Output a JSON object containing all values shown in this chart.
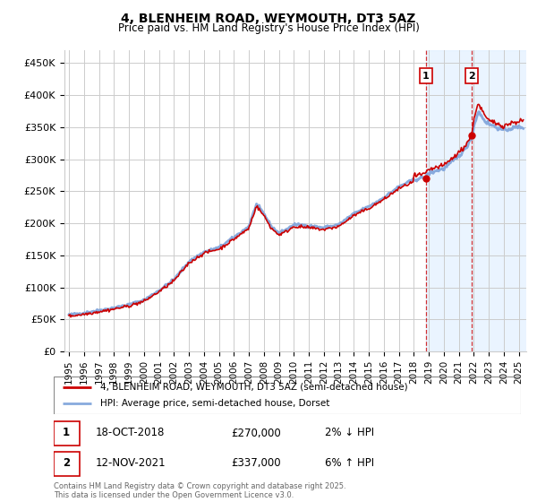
{
  "title": "4, BLENHEIM ROAD, WEYMOUTH, DT3 5AZ",
  "subtitle": "Price paid vs. HM Land Registry's House Price Index (HPI)",
  "ylabel_ticks": [
    "£0",
    "£50K",
    "£100K",
    "£150K",
    "£200K",
    "£250K",
    "£300K",
    "£350K",
    "£400K",
    "£450K"
  ],
  "ytick_values": [
    0,
    50000,
    100000,
    150000,
    200000,
    250000,
    300000,
    350000,
    400000,
    450000
  ],
  "ylim": [
    0,
    470000
  ],
  "xlim_start": 1994.7,
  "xlim_end": 2025.5,
  "xticks": [
    1995,
    1996,
    1997,
    1998,
    1999,
    2000,
    2001,
    2002,
    2003,
    2004,
    2005,
    2006,
    2007,
    2008,
    2009,
    2010,
    2011,
    2012,
    2013,
    2014,
    2015,
    2016,
    2017,
    2018,
    2019,
    2020,
    2021,
    2022,
    2023,
    2024,
    2025
  ],
  "sale1_date_x": 2018.8,
  "sale1_y": 270000,
  "sale1_label": "1",
  "sale2_date_x": 2021.87,
  "sale2_y": 337000,
  "sale2_label": "2",
  "shade_start": 2018.8,
  "shade_end": 2025.5,
  "line_color_red": "#cc0000",
  "line_color_blue": "#88aadd",
  "shade_color": "#ddeeff",
  "grid_color": "#cccccc",
  "legend_label_red": "4, BLENHEIM ROAD, WEYMOUTH, DT3 5AZ (semi-detached house)",
  "legend_label_blue": "HPI: Average price, semi-detached house, Dorset",
  "table_row1": [
    "1",
    "18-OCT-2018",
    "£270,000",
    "2% ↓ HPI"
  ],
  "table_row2": [
    "2",
    "12-NOV-2021",
    "£337,000",
    "6% ↑ HPI"
  ],
  "footnote": "Contains HM Land Registry data © Crown copyright and database right 2025.\nThis data is licensed under the Open Government Licence v3.0.",
  "background_color": "#ffffff",
  "hpi_base_points": [
    [
      1995,
      57000
    ],
    [
      1996,
      60000
    ],
    [
      1997,
      64000
    ],
    [
      1998,
      68000
    ],
    [
      1999,
      73000
    ],
    [
      2000,
      80000
    ],
    [
      2001,
      95000
    ],
    [
      2002,
      112000
    ],
    [
      2003,
      140000
    ],
    [
      2004,
      155000
    ],
    [
      2005,
      162000
    ],
    [
      2006,
      178000
    ],
    [
      2007,
      195000
    ],
    [
      2007.5,
      230000
    ],
    [
      2008,
      215000
    ],
    [
      2008.5,
      195000
    ],
    [
      2009,
      185000
    ],
    [
      2009.5,
      190000
    ],
    [
      2010,
      198000
    ],
    [
      2011,
      196000
    ],
    [
      2012,
      193000
    ],
    [
      2013,
      198000
    ],
    [
      2014,
      215000
    ],
    [
      2015,
      226000
    ],
    [
      2016,
      240000
    ],
    [
      2017,
      257000
    ],
    [
      2018,
      268000
    ],
    [
      2018.8,
      272000
    ],
    [
      2019,
      278000
    ],
    [
      2019.5,
      282000
    ],
    [
      2020,
      285000
    ],
    [
      2020.5,
      295000
    ],
    [
      2021,
      305000
    ],
    [
      2021.5,
      318000
    ],
    [
      2021.87,
      335000
    ],
    [
      2022,
      350000
    ],
    [
      2022.3,
      375000
    ],
    [
      2022.5,
      368000
    ],
    [
      2022.8,
      358000
    ],
    [
      2023,
      355000
    ],
    [
      2023.5,
      350000
    ],
    [
      2024,
      345000
    ],
    [
      2024.5,
      348000
    ],
    [
      2025,
      350000
    ]
  ]
}
